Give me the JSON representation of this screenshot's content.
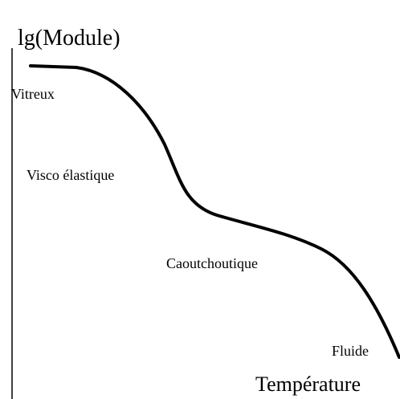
{
  "axis_labels": {
    "y": "lg(Module)",
    "x": "Température"
  },
  "regions": [
    "Vitreux",
    "Visco élastique",
    "Caoutchoutique",
    "Fluide"
  ]
}
